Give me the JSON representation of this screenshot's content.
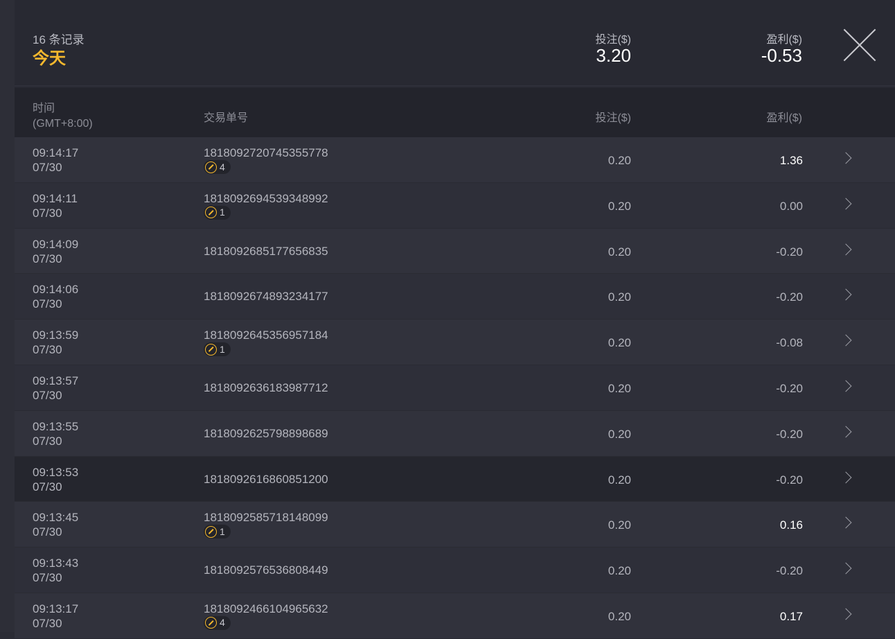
{
  "summary": {
    "count": "16 条记录",
    "period": "今天",
    "bet_label": "投注($)",
    "bet_total": "3.20",
    "profit_label": "盈利($)",
    "profit_total": "-0.53"
  },
  "colors": {
    "accent": "#f5b82e"
  },
  "table": {
    "headers": {
      "time": "时间",
      "timezone": "(GMT+8:00)",
      "id": "交易单号",
      "bet": "投注($)",
      "profit": "盈利($)"
    },
    "rows": [
      {
        "time": "09:14:17",
        "date": "07/30",
        "id": "1818092720745355778",
        "badge": "4",
        "bet": "0.20",
        "profit": "1.36"
      },
      {
        "time": "09:14:11",
        "date": "07/30",
        "id": "1818092694539348992",
        "badge": "1",
        "bet": "0.20",
        "profit": "0.00"
      },
      {
        "time": "09:14:09",
        "date": "07/30",
        "id": "1818092685177656835",
        "badge": null,
        "bet": "0.20",
        "profit": "-0.20"
      },
      {
        "time": "09:14:06",
        "date": "07/30",
        "id": "1818092674893234177",
        "badge": null,
        "bet": "0.20",
        "profit": "-0.20"
      },
      {
        "time": "09:13:59",
        "date": "07/30",
        "id": "1818092645356957184",
        "badge": "1",
        "bet": "0.20",
        "profit": "-0.08"
      },
      {
        "time": "09:13:57",
        "date": "07/30",
        "id": "1818092636183987712",
        "badge": null,
        "bet": "0.20",
        "profit": "-0.20"
      },
      {
        "time": "09:13:55",
        "date": "07/30",
        "id": "1818092625798898689",
        "badge": null,
        "bet": "0.20",
        "profit": "-0.20"
      },
      {
        "time": "09:13:53",
        "date": "07/30",
        "id": "1818092616860851200",
        "badge": null,
        "bet": "0.20",
        "profit": "-0.20"
      },
      {
        "time": "09:13:45",
        "date": "07/30",
        "id": "1818092585718148099",
        "badge": "1",
        "bet": "0.20",
        "profit": "0.16"
      },
      {
        "time": "09:13:43",
        "date": "07/30",
        "id": "1818092576536808449",
        "badge": null,
        "bet": "0.20",
        "profit": "-0.20"
      },
      {
        "time": "09:13:17",
        "date": "07/30",
        "id": "1818092466104965632",
        "badge": "4",
        "bet": "0.20",
        "profit": "0.17"
      }
    ]
  }
}
